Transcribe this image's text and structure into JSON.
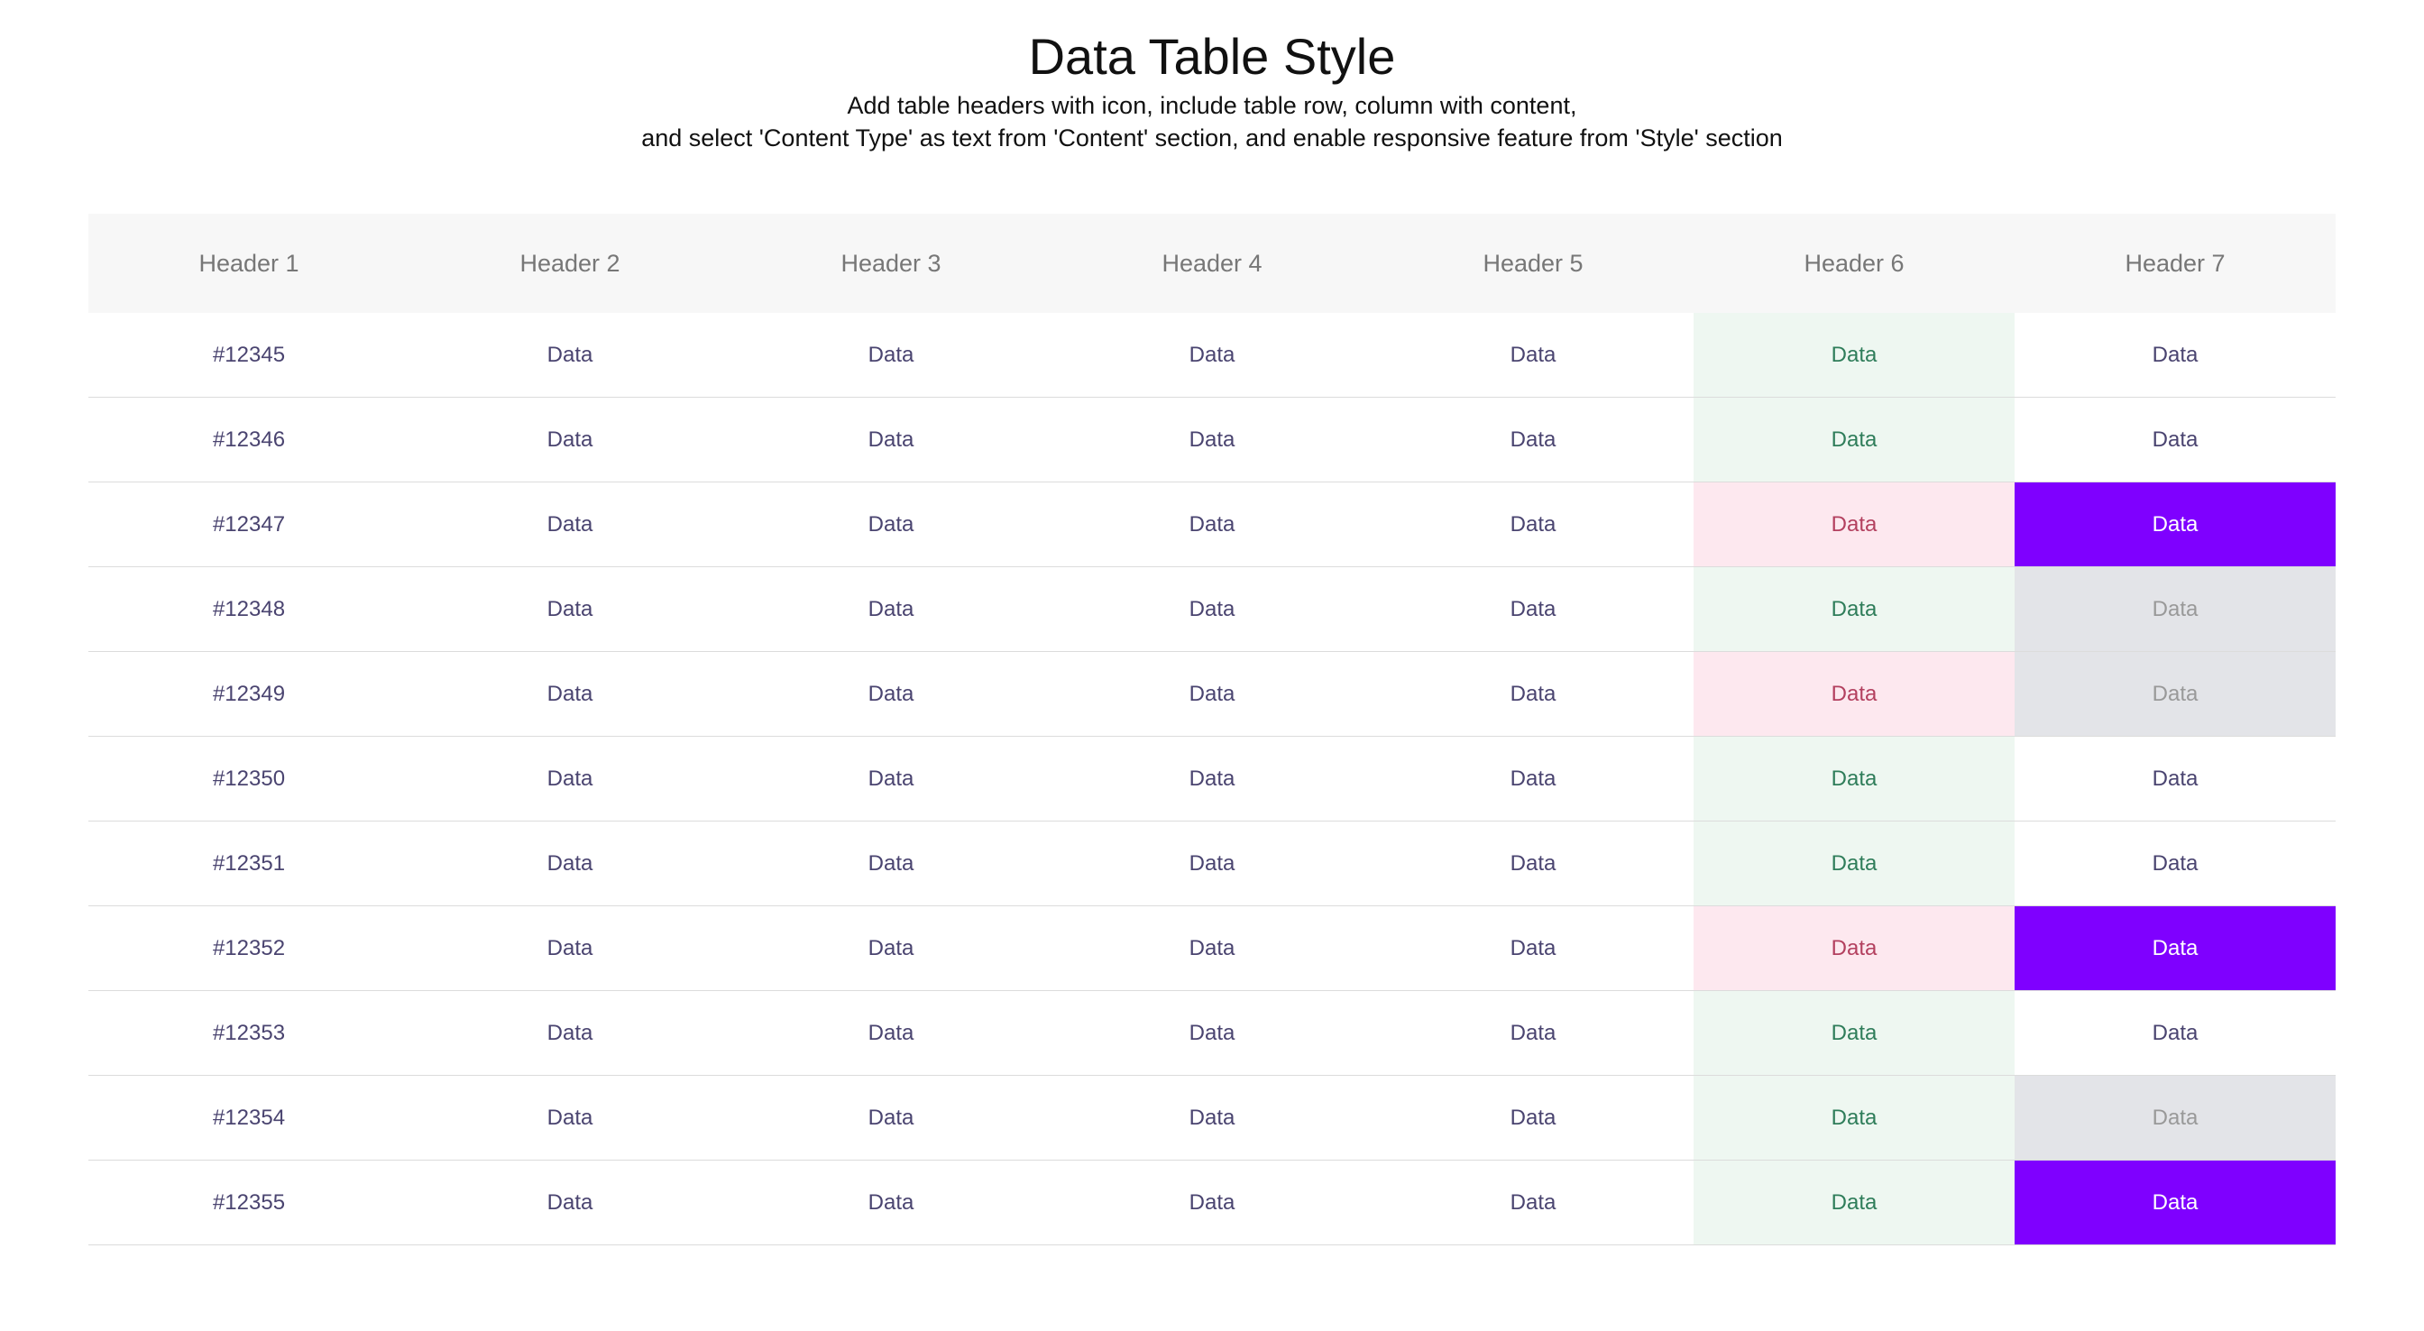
{
  "title": "Data Table Style",
  "subtitle_line1": "Add table headers with icon, include table row, column with content,",
  "subtitle_line2": "and select 'Content Type' as text from 'Content' section, and enable responsive feature from 'Style' section",
  "colors": {
    "success_bg": "#eef7f1",
    "success_text": "#2f7d5a",
    "danger_bg": "#fde8ef",
    "danger_text": "#b3405f",
    "highlight_bg": "#7f00ff",
    "muted_bg": "#e3e4e8",
    "header_bg": "#f7f7f7"
  },
  "headers": [
    "Header 1",
    "Header 2",
    "Header 3",
    "Header 4",
    "Header 5",
    "Header 6",
    "Header 7"
  ],
  "rows": [
    {
      "cells": [
        "#12345",
        "Data",
        "Data",
        "Data",
        "Data",
        "Data",
        "Data"
      ],
      "h6": "success",
      "h7": "default"
    },
    {
      "cells": [
        "#12346",
        "Data",
        "Data",
        "Data",
        "Data",
        "Data",
        "Data"
      ],
      "h6": "success",
      "h7": "default"
    },
    {
      "cells": [
        "#12347",
        "Data",
        "Data",
        "Data",
        "Data",
        "Data",
        "Data"
      ],
      "h6": "danger",
      "h7": "highlight"
    },
    {
      "cells": [
        "#12348",
        "Data",
        "Data",
        "Data",
        "Data",
        "Data",
        "Data"
      ],
      "h6": "success",
      "h7": "muted"
    },
    {
      "cells": [
        "#12349",
        "Data",
        "Data",
        "Data",
        "Data",
        "Data",
        "Data"
      ],
      "h6": "danger",
      "h7": "muted"
    },
    {
      "cells": [
        "#12350",
        "Data",
        "Data",
        "Data",
        "Data",
        "Data",
        "Data"
      ],
      "h6": "success",
      "h7": "default"
    },
    {
      "cells": [
        "#12351",
        "Data",
        "Data",
        "Data",
        "Data",
        "Data",
        "Data"
      ],
      "h6": "success",
      "h7": "default"
    },
    {
      "cells": [
        "#12352",
        "Data",
        "Data",
        "Data",
        "Data",
        "Data",
        "Data"
      ],
      "h6": "danger",
      "h7": "highlight"
    },
    {
      "cells": [
        "#12353",
        "Data",
        "Data",
        "Data",
        "Data",
        "Data",
        "Data"
      ],
      "h6": "success",
      "h7": "default"
    },
    {
      "cells": [
        "#12354",
        "Data",
        "Data",
        "Data",
        "Data",
        "Data",
        "Data"
      ],
      "h6": "success",
      "h7": "muted"
    },
    {
      "cells": [
        "#12355",
        "Data",
        "Data",
        "Data",
        "Data",
        "Data",
        "Data"
      ],
      "h6": "success",
      "h7": "highlight"
    }
  ]
}
